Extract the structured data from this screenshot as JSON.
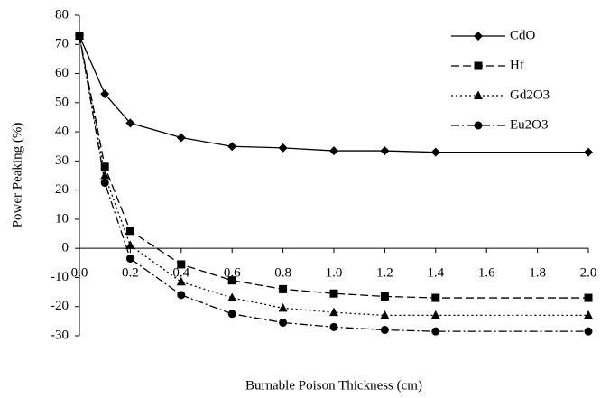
{
  "chart_data": {
    "type": "line",
    "x_label": "Burnable Poison Thickness (cm)",
    "y_label": "Power Peaking (%)",
    "x": [
      0,
      0.1,
      0.2,
      0.4,
      0.6,
      0.8,
      1.0,
      1.2,
      1.4,
      2.0
    ],
    "series": [
      {
        "name": "CdO",
        "color": "#000000",
        "marker": "diamond",
        "dash": "solid",
        "values": [
          73,
          53,
          43,
          38,
          35,
          34.5,
          33.5,
          33.5,
          33,
          33
        ]
      },
      {
        "name": "Hf",
        "color": "#000000",
        "marker": "square",
        "dash": "dashed",
        "values": [
          73,
          28,
          6,
          -5.5,
          -11,
          -14,
          -15.5,
          -16.5,
          -17,
          -17
        ]
      },
      {
        "name": "Gd2O3",
        "color": "#000000",
        "marker": "triangle",
        "dash": "dotted",
        "values": [
          73,
          25,
          1,
          -11.5,
          -17,
          -20.5,
          -22,
          -23,
          -23,
          -23
        ]
      },
      {
        "name": "Eu2O3",
        "color": "#000000",
        "marker": "circle",
        "dash": "dashdot",
        "values": [
          73,
          22.5,
          -3.5,
          -16,
          -22.5,
          -25.5,
          -27,
          -28,
          -28.5,
          -28.5
        ]
      }
    ],
    "xlim": [
      0,
      2.0
    ],
    "xticks": [
      {
        "value": 0,
        "label": "0.0"
      },
      {
        "value": 0.2,
        "label": "0.2"
      },
      {
        "value": 0.4,
        "label": "0.4"
      },
      {
        "value": 0.6,
        "label": "0.6"
      },
      {
        "value": 0.8,
        "label": "0.8"
      },
      {
        "value": 1.0,
        "label": "1.0"
      },
      {
        "value": 1.2,
        "label": "1.2"
      },
      {
        "value": 1.4,
        "label": "1.4"
      },
      {
        "value": 1.6,
        "label": "1.6"
      },
      {
        "value": 1.8,
        "label": "1.8"
      },
      {
        "value": 2.0,
        "label": "2.0"
      }
    ],
    "ylim": [
      -30,
      80
    ],
    "yticks": [
      -30,
      -20,
      -10,
      0,
      10,
      20,
      30,
      40,
      50,
      60,
      70,
      80
    ],
    "grid": false,
    "legend": "top-right"
  }
}
